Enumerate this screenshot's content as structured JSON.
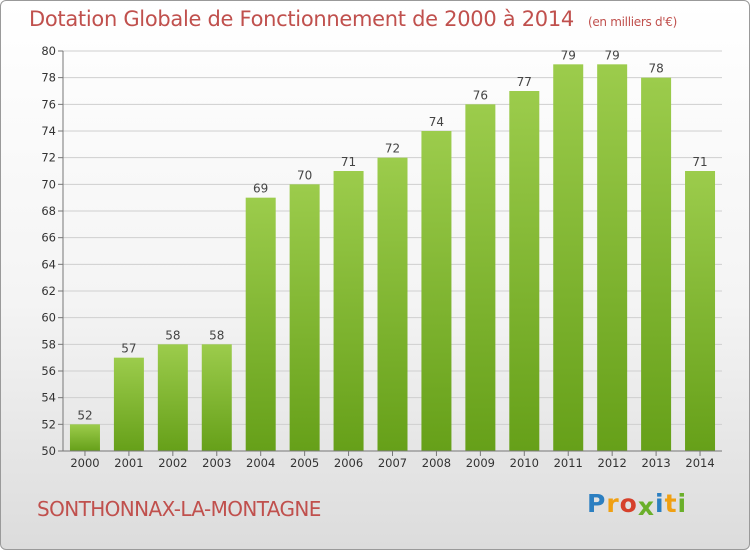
{
  "title": "Dotation Globale de Fonctionnement de 2000 à 2014",
  "unit_note": "(en milliers d'€)",
  "place_name": "SONTHONNAX-LA-MONTAGNE",
  "logo": {
    "text": "Proxiti",
    "letters": [
      {
        "ch": "P",
        "color": "#2c7fc1"
      },
      {
        "ch": "r",
        "color": "#f0a012"
      },
      {
        "ch": "o",
        "color": "#d6402b"
      },
      {
        "ch": "x",
        "color": "#6aaf2a"
      },
      {
        "ch": "i",
        "color": "#2c7fc1"
      },
      {
        "ch": "t",
        "color": "#f0a012"
      },
      {
        "ch": "i",
        "color": "#6aaf2a"
      }
    ]
  },
  "colors": {
    "title": "#c0504d",
    "bar_top": "#9ccc4c",
    "bar_bottom": "#66a019",
    "grid": "#cfcfcf"
  },
  "chart_data": {
    "type": "bar",
    "title": "Dotation Globale de Fonctionnement de 2000 à 2014",
    "categories": [
      "2000",
      "2001",
      "2002",
      "2003",
      "2004",
      "2005",
      "2006",
      "2007",
      "2008",
      "2009",
      "2010",
      "2011",
      "2012",
      "2013",
      "2014"
    ],
    "values": [
      52,
      57,
      58,
      58,
      69,
      70,
      71,
      72,
      74,
      76,
      77,
      79,
      79,
      78,
      71
    ],
    "ylim": [
      50,
      80
    ],
    "yticks": [
      50,
      52,
      54,
      56,
      58,
      60,
      62,
      64,
      66,
      68,
      70,
      72,
      74,
      76,
      78,
      80
    ],
    "grid": true,
    "xlabel": "",
    "ylabel": ""
  }
}
